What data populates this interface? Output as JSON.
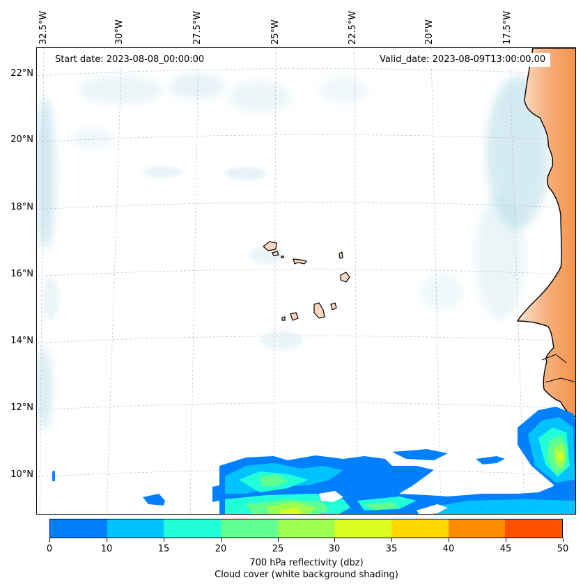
{
  "header": {
    "start_date": "Start date: 2023-08-08_00:00:00",
    "valid_date": "Valid_date: 2023-08-09T13:00:00.00"
  },
  "map": {
    "lon_labels": [
      "32.5°W",
      "30°W",
      "27.5°W",
      "25°W",
      "22.5°W",
      "20°W",
      "17.5°W"
    ],
    "lat_labels": [
      "22°N",
      "20°N",
      "18°N",
      "16°N",
      "14°N",
      "12°N",
      "10°N"
    ],
    "gridlines": true,
    "colors": {
      "land": "#f5a061",
      "coast": "#000000",
      "cloud": "#add8e6",
      "grid": "#b0b0b0"
    }
  },
  "colorbar": {
    "tick_labels": [
      "0",
      "10",
      "15",
      "20",
      "25",
      "30",
      "35",
      "40",
      "45",
      "50"
    ],
    "colors": [
      "#0080ff",
      "#00c3ff",
      "#20ffd8",
      "#60ff90",
      "#9cff50",
      "#d8ff20",
      "#ffd800",
      "#ff8c00",
      "#ff5000"
    ],
    "label_line1": "700 hPa reflectivity (dbz)",
    "label_line2": "Cloud cover (white background shading)"
  }
}
